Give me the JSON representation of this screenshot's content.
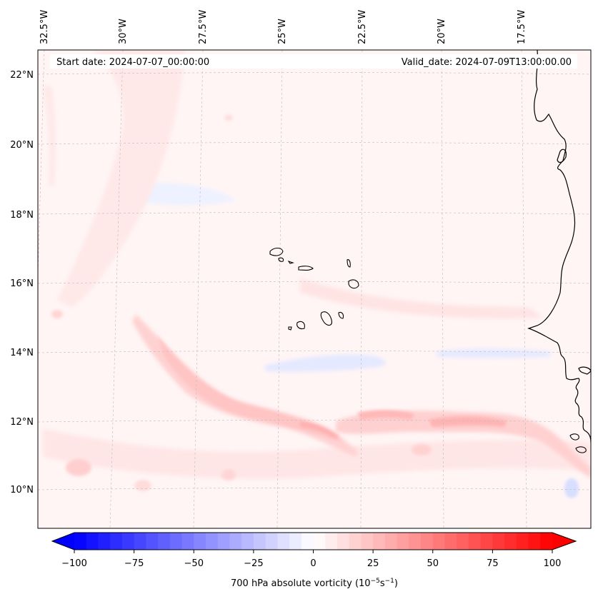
{
  "map": {
    "header": {
      "start_date": "Start date: 2024-07-07_00:00:00",
      "valid_date": "Valid_date: 2024-07-09T13:00:00.00"
    },
    "longitude_labels": [
      "32.5°W",
      "30°W",
      "27.5°W",
      "25°W",
      "22.5°W",
      "20°W",
      "17.5°W"
    ],
    "latitude_labels": [
      "22°N",
      "20°N",
      "18°N",
      "16°N",
      "14°N",
      "12°N",
      "10°N"
    ],
    "features": {
      "landmass": "West African coastline",
      "islands": "Cape Verde Islands"
    }
  },
  "colorbar": {
    "ticks": [
      "−100",
      "−75",
      "−50",
      "−25",
      "0",
      "25",
      "50",
      "75",
      "100"
    ],
    "label_prefix": "700 hPa absolute vorticity (10",
    "label_exp1": "−5",
    "label_mid": "s",
    "label_exp2": "−1",
    "label_suffix": ")",
    "min_color": "#0000ff",
    "mid_color": "#ffffff",
    "max_color": "#ff0000"
  }
}
